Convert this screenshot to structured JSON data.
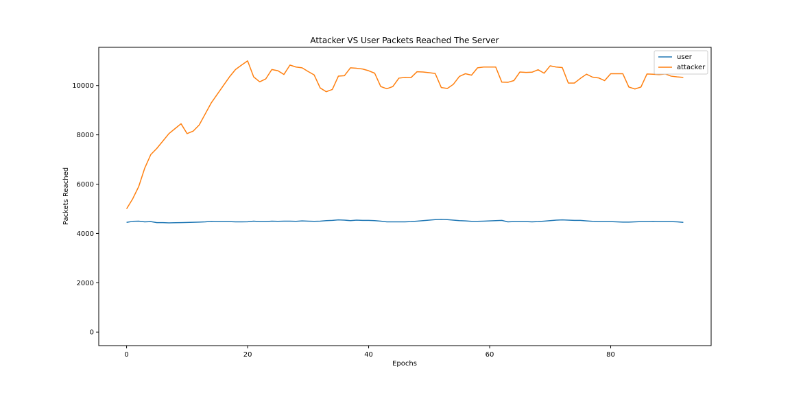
{
  "chart_data": {
    "type": "line",
    "title": "Attacker VS User Packets Reached The Server",
    "xlabel": "Epochs",
    "ylabel": "Packets Reached",
    "xlim": [
      -4.6,
      96.6
    ],
    "ylim": [
      -550,
      11550
    ],
    "x_ticks": [
      0,
      20,
      40,
      60,
      80
    ],
    "y_ticks": [
      0,
      2000,
      4000,
      6000,
      8000,
      10000
    ],
    "grid": false,
    "legend_position": "top-right",
    "series": [
      {
        "name": "user",
        "color": "#1f77b4",
        "values": [
          4450,
          4490,
          4500,
          4470,
          4480,
          4440,
          4440,
          4430,
          4435,
          4440,
          4445,
          4455,
          4460,
          4470,
          4490,
          4480,
          4480,
          4480,
          4470,
          4470,
          4475,
          4500,
          4480,
          4480,
          4500,
          4490,
          4500,
          4500,
          4490,
          4510,
          4500,
          4490,
          4500,
          4520,
          4530,
          4550,
          4540,
          4520,
          4540,
          4530,
          4530,
          4520,
          4500,
          4470,
          4470,
          4470,
          4470,
          4480,
          4500,
          4520,
          4540,
          4560,
          4570,
          4560,
          4540,
          4520,
          4510,
          4490,
          4490,
          4500,
          4510,
          4520,
          4530,
          4470,
          4480,
          4480,
          4480,
          4470,
          4480,
          4500,
          4520,
          4540,
          4550,
          4540,
          4530,
          4530,
          4510,
          4490,
          4480,
          4480,
          4480,
          4470,
          4460,
          4460,
          4470,
          4480,
          4480,
          4490,
          4480,
          4480,
          4480,
          4470,
          4450
        ]
      },
      {
        "name": "attacker",
        "color": "#ff7f0e",
        "values": [
          5000,
          5400,
          5900,
          6650,
          7200,
          7450,
          7750,
          8050,
          8250,
          8450,
          8050,
          8150,
          8400,
          8850,
          9300,
          9650,
          10000,
          10350,
          10650,
          10830,
          11000,
          10350,
          10150,
          10270,
          10650,
          10600,
          10450,
          10830,
          10750,
          10720,
          10570,
          10430,
          9900,
          9750,
          9840,
          10380,
          10400,
          10720,
          10700,
          10670,
          10600,
          10500,
          9960,
          9870,
          9960,
          10300,
          10330,
          10320,
          10560,
          10550,
          10520,
          10490,
          9920,
          9880,
          10050,
          10370,
          10480,
          10420,
          10720,
          10750,
          10750,
          10750,
          10140,
          10130,
          10200,
          10550,
          10530,
          10540,
          10640,
          10500,
          10800,
          10750,
          10730,
          10100,
          10100,
          10290,
          10460,
          10340,
          10310,
          10200,
          10480,
          10480,
          10480,
          9940,
          9860,
          9940,
          10470,
          10460,
          10440,
          10470,
          10380,
          10350,
          10330
        ]
      }
    ]
  }
}
